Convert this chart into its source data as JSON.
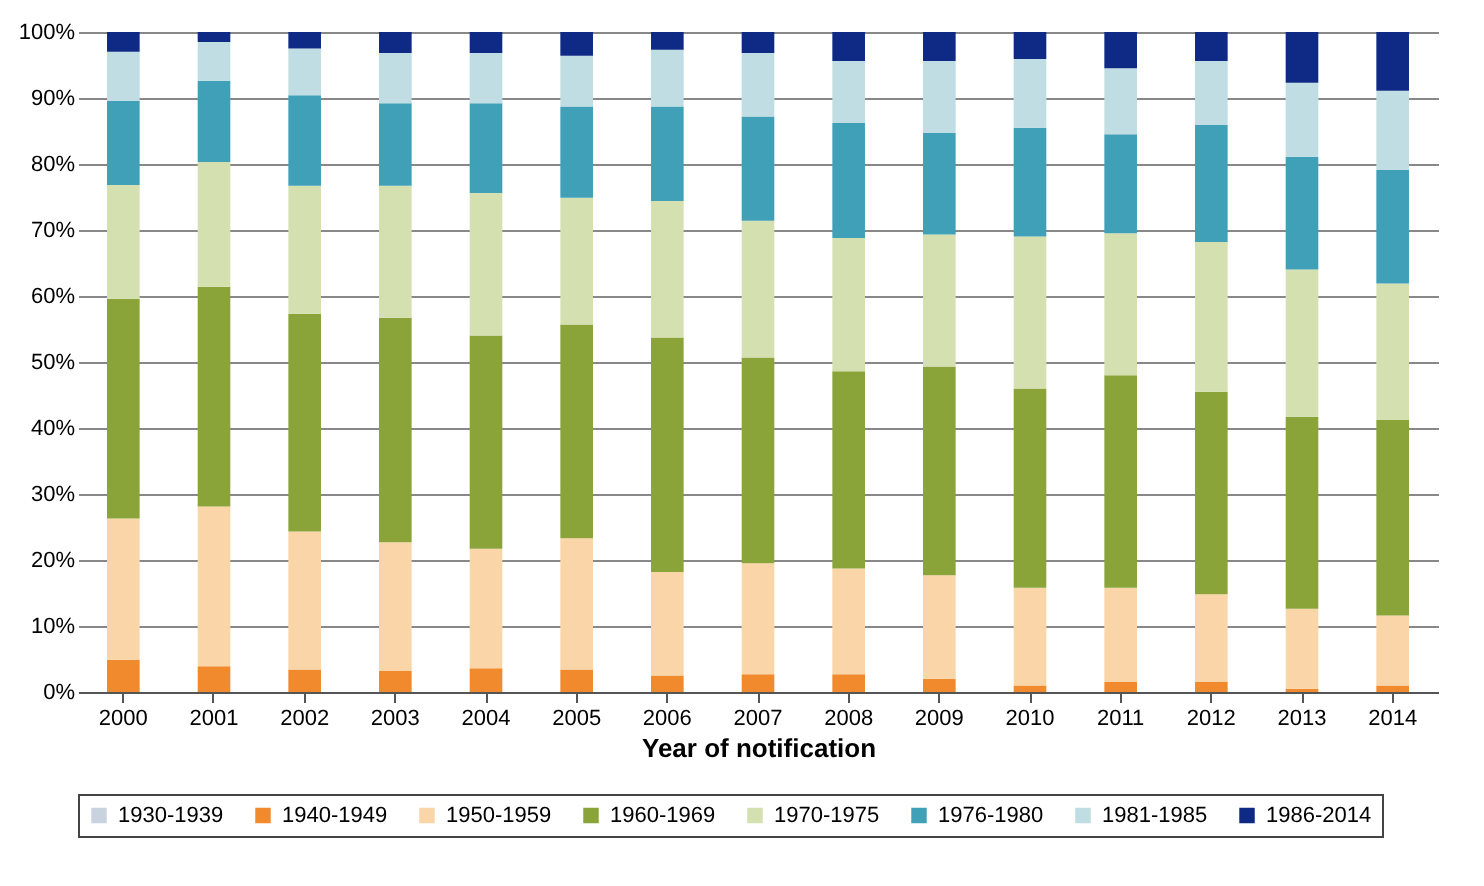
{
  "chart_data": {
    "type": "bar",
    "stacked": true,
    "xlabel": "Year of notification",
    "categories": [
      "2000",
      "2001",
      "2002",
      "2003",
      "2004",
      "2005",
      "2006",
      "2007",
      "2008",
      "2009",
      "2010",
      "2011",
      "2012",
      "2013",
      "2014"
    ],
    "ylim": [
      0,
      100
    ],
    "yticks": [
      {
        "value": 0,
        "label": "0%"
      },
      {
        "value": 10,
        "label": "10%"
      },
      {
        "value": 20,
        "label": "20%"
      },
      {
        "value": 30,
        "label": "30%"
      },
      {
        "value": 40,
        "label": "40%"
      },
      {
        "value": 50,
        "label": "50%"
      },
      {
        "value": 60,
        "label": "60%"
      },
      {
        "value": 70,
        "label": "70%"
      },
      {
        "value": 80,
        "label": "80%"
      },
      {
        "value": 90,
        "label": "90%"
      },
      {
        "value": 100,
        "label": "100%"
      }
    ],
    "grid": "y",
    "legend": "bottom",
    "series": [
      {
        "name": "1930-1939",
        "color": "#c9d3e0",
        "values": [
          0,
          0,
          0,
          0,
          0,
          0,
          0,
          0,
          0,
          0,
          0,
          0,
          0,
          0,
          0
        ]
      },
      {
        "name": "1940-1949",
        "color": "#f08a2c",
        "values": [
          4.9,
          3.9,
          3.4,
          3.2,
          3.6,
          3.4,
          2.5,
          2.7,
          2.7,
          2.0,
          1.0,
          1.5,
          1.5,
          0.5,
          1.0
        ]
      },
      {
        "name": "1950-1959",
        "color": "#fad5a8",
        "values": [
          21.4,
          24.2,
          20.9,
          19.5,
          18.1,
          19.9,
          15.7,
          16.8,
          16.0,
          15.7,
          14.8,
          14.3,
          13.3,
          12.1,
          10.6
        ]
      },
      {
        "name": "1960-1969",
        "color": "#8aa43a",
        "values": [
          33.3,
          33.3,
          33.0,
          34.0,
          32.3,
          32.4,
          35.5,
          31.2,
          29.9,
          31.6,
          30.2,
          32.2,
          30.7,
          29.1,
          29.6
        ]
      },
      {
        "name": "1970-1975",
        "color": "#d5e0b0",
        "values": [
          17.2,
          18.9,
          19.4,
          20.0,
          21.6,
          19.2,
          20.7,
          20.7,
          20.2,
          20.0,
          23.0,
          21.5,
          22.7,
          22.3,
          20.7
        ]
      },
      {
        "name": "1976-1980",
        "color": "#40a0b8",
        "values": [
          12.8,
          12.3,
          13.7,
          12.5,
          13.6,
          13.8,
          14.3,
          15.8,
          17.4,
          15.4,
          16.5,
          15.0,
          17.7,
          17.1,
          17.2
        ]
      },
      {
        "name": "1981-1985",
        "color": "#bfdde3",
        "values": [
          7.4,
          5.9,
          7.1,
          7.6,
          7.6,
          7.7,
          8.6,
          9.6,
          9.4,
          10.9,
          10.4,
          10.0,
          9.7,
          11.2,
          12.0
        ]
      },
      {
        "name": "1986-2014",
        "color": "#0f2a85",
        "values": [
          3.0,
          1.5,
          2.5,
          3.2,
          3.2,
          3.6,
          2.7,
          3.2,
          4.4,
          4.4,
          4.1,
          5.5,
          4.4,
          7.7,
          8.9
        ]
      }
    ]
  }
}
